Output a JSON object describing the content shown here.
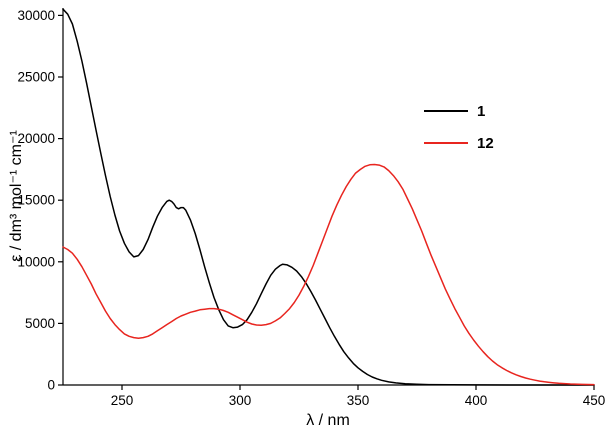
{
  "chart_data": {
    "type": "line",
    "title": "",
    "xlabel": "λ / nm",
    "ylabel": "ε / dm³ mol⁻¹ cm⁻¹",
    "xlim": [
      225,
      450
    ],
    "ylim": [
      0,
      30600
    ],
    "x_ticks": [
      250,
      300,
      350,
      400,
      450
    ],
    "y_ticks": [
      0,
      5000,
      10000,
      15000,
      20000,
      25000,
      30000
    ],
    "grid": false,
    "legend_position": "upper right",
    "series": [
      {
        "name": "1",
        "color": "#000000",
        "points": [
          [
            225,
            30500
          ],
          [
            227,
            30100
          ],
          [
            229,
            29300
          ],
          [
            231,
            27900
          ],
          [
            233,
            26300
          ],
          [
            235,
            24500
          ],
          [
            237,
            22600
          ],
          [
            239,
            20700
          ],
          [
            241,
            18800
          ],
          [
            243,
            17000
          ],
          [
            245,
            15300
          ],
          [
            247,
            13800
          ],
          [
            249,
            12500
          ],
          [
            251,
            11500
          ],
          [
            253,
            10800
          ],
          [
            255,
            10400
          ],
          [
            257,
            10500
          ],
          [
            259,
            11000
          ],
          [
            261,
            11800
          ],
          [
            263,
            12800
          ],
          [
            265,
            13700
          ],
          [
            267,
            14400
          ],
          [
            269,
            14900
          ],
          [
            270,
            15000
          ],
          [
            271,
            14900
          ],
          [
            272,
            14700
          ],
          [
            273,
            14400
          ],
          [
            274,
            14300
          ],
          [
            275,
            14400
          ],
          [
            276,
            14400
          ],
          [
            277,
            14200
          ],
          [
            279,
            13400
          ],
          [
            281,
            12300
          ],
          [
            283,
            11000
          ],
          [
            285,
            9600
          ],
          [
            287,
            8300
          ],
          [
            289,
            7100
          ],
          [
            291,
            6100
          ],
          [
            293,
            5300
          ],
          [
            295,
            4800
          ],
          [
            297,
            4650
          ],
          [
            299,
            4700
          ],
          [
            301,
            4900
          ],
          [
            303,
            5300
          ],
          [
            305,
            5900
          ],
          [
            307,
            6600
          ],
          [
            309,
            7400
          ],
          [
            311,
            8200
          ],
          [
            313,
            8900
          ],
          [
            315,
            9400
          ],
          [
            317,
            9700
          ],
          [
            318,
            9800
          ],
          [
            320,
            9750
          ],
          [
            322,
            9550
          ],
          [
            324,
            9250
          ],
          [
            326,
            8800
          ],
          [
            328,
            8250
          ],
          [
            330,
            7600
          ],
          [
            332,
            6900
          ],
          [
            334,
            6150
          ],
          [
            336,
            5400
          ],
          [
            338,
            4650
          ],
          [
            340,
            3950
          ],
          [
            342,
            3300
          ],
          [
            344,
            2700
          ],
          [
            346,
            2200
          ],
          [
            348,
            1750
          ],
          [
            350,
            1400
          ],
          [
            352,
            1100
          ],
          [
            354,
            850
          ],
          [
            356,
            650
          ],
          [
            358,
            500
          ],
          [
            360,
            380
          ],
          [
            363,
            250
          ],
          [
            366,
            170
          ],
          [
            370,
            100
          ],
          [
            375,
            60
          ],
          [
            380,
            35
          ],
          [
            390,
            15
          ],
          [
            400,
            5
          ],
          [
            420,
            0
          ],
          [
            450,
            0
          ]
        ]
      },
      {
        "name": "12",
        "color": "#e8251f",
        "points": [
          [
            225,
            11200
          ],
          [
            227,
            11000
          ],
          [
            229,
            10700
          ],
          [
            231,
            10200
          ],
          [
            233,
            9600
          ],
          [
            235,
            8900
          ],
          [
            237,
            8200
          ],
          [
            239,
            7400
          ],
          [
            241,
            6700
          ],
          [
            243,
            6000
          ],
          [
            245,
            5400
          ],
          [
            247,
            4900
          ],
          [
            249,
            4500
          ],
          [
            251,
            4150
          ],
          [
            253,
            3950
          ],
          [
            255,
            3850
          ],
          [
            257,
            3800
          ],
          [
            259,
            3850
          ],
          [
            261,
            3950
          ],
          [
            263,
            4150
          ],
          [
            265,
            4400
          ],
          [
            267,
            4650
          ],
          [
            269,
            4900
          ],
          [
            271,
            5150
          ],
          [
            273,
            5400
          ],
          [
            275,
            5600
          ],
          [
            277,
            5750
          ],
          [
            279,
            5900
          ],
          [
            281,
            6000
          ],
          [
            283,
            6100
          ],
          [
            285,
            6150
          ],
          [
            287,
            6200
          ],
          [
            289,
            6200
          ],
          [
            291,
            6150
          ],
          [
            293,
            6050
          ],
          [
            295,
            5900
          ],
          [
            297,
            5700
          ],
          [
            299,
            5500
          ],
          [
            301,
            5300
          ],
          [
            303,
            5100
          ],
          [
            305,
            4950
          ],
          [
            307,
            4870
          ],
          [
            309,
            4850
          ],
          [
            311,
            4900
          ],
          [
            313,
            5000
          ],
          [
            315,
            5200
          ],
          [
            317,
            5450
          ],
          [
            319,
            5800
          ],
          [
            321,
            6200
          ],
          [
            323,
            6700
          ],
          [
            325,
            7300
          ],
          [
            327,
            8000
          ],
          [
            329,
            8800
          ],
          [
            331,
            9700
          ],
          [
            333,
            10700
          ],
          [
            335,
            11700
          ],
          [
            337,
            12700
          ],
          [
            339,
            13700
          ],
          [
            341,
            14600
          ],
          [
            343,
            15400
          ],
          [
            345,
            16100
          ],
          [
            347,
            16700
          ],
          [
            349,
            17200
          ],
          [
            351,
            17500
          ],
          [
            353,
            17750
          ],
          [
            355,
            17870
          ],
          [
            357,
            17900
          ],
          [
            359,
            17850
          ],
          [
            361,
            17700
          ],
          [
            363,
            17400
          ],
          [
            365,
            17000
          ],
          [
            367,
            16500
          ],
          [
            369,
            15900
          ],
          [
            371,
            15100
          ],
          [
            373,
            14300
          ],
          [
            375,
            13400
          ],
          [
            377,
            12500
          ],
          [
            379,
            11500
          ],
          [
            381,
            10500
          ],
          [
            383,
            9600
          ],
          [
            385,
            8700
          ],
          [
            387,
            7800
          ],
          [
            389,
            7000
          ],
          [
            391,
            6200
          ],
          [
            393,
            5500
          ],
          [
            395,
            4800
          ],
          [
            397,
            4200
          ],
          [
            399,
            3650
          ],
          [
            401,
            3150
          ],
          [
            403,
            2700
          ],
          [
            405,
            2300
          ],
          [
            407,
            1950
          ],
          [
            409,
            1650
          ],
          [
            411,
            1400
          ],
          [
            413,
            1180
          ],
          [
            415,
            990
          ],
          [
            417,
            830
          ],
          [
            419,
            690
          ],
          [
            421,
            570
          ],
          [
            423,
            470
          ],
          [
            425,
            390
          ],
          [
            427,
            320
          ],
          [
            429,
            260
          ],
          [
            431,
            210
          ],
          [
            433,
            170
          ],
          [
            435,
            140
          ],
          [
            440,
            85
          ],
          [
            445,
            50
          ],
          [
            450,
            30
          ]
        ]
      }
    ]
  }
}
